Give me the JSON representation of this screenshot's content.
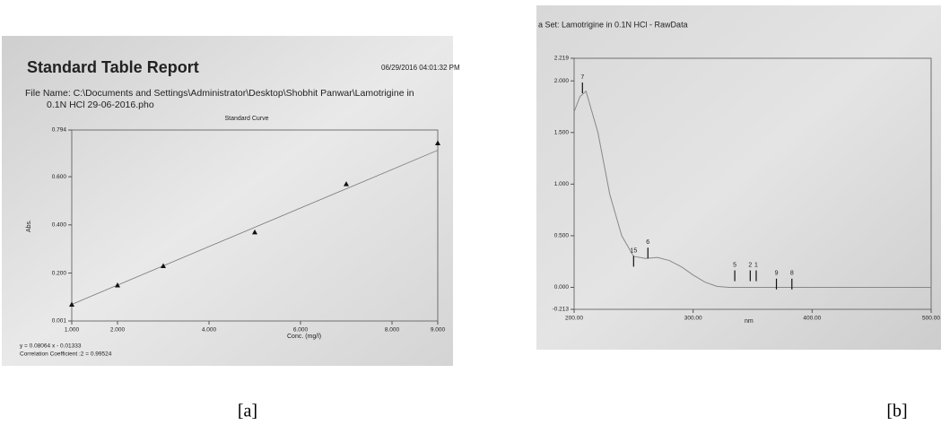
{
  "chart_data": [
    {
      "type": "scatter",
      "title": "Standard Table Report",
      "date": "06/29/2016  04:01:32 PM",
      "file_name": [
        "File Name: C:\\Documents and Settings\\Administrator\\Desktop\\Shobhit Panwar\\Lamotrigine in",
        "0.1N HCl 29-06-2016.pho"
      ],
      "subtitle": "Standard Curve",
      "x_label": "Conc. (mg/l)",
      "y_label": "Abs.",
      "equation": "y = 0.08064 x - 0.01333",
      "correlation": "Correlation Coefficient :2 = 0.99524",
      "x": [
        1,
        2,
        3,
        5,
        7,
        9
      ],
      "values": [
        0.07,
        0.15,
        0.23,
        0.37,
        0.57,
        0.74
      ],
      "color": "#111111",
      "fit_line": {
        "x": [
          1,
          9
        ],
        "values": [
          0.07,
          0.71
        ]
      },
      "xlim": [
        1,
        9
      ],
      "ylim": [
        0.001,
        0.794
      ],
      "xticks": [
        {
          "value": 1,
          "label": "1.000"
        },
        {
          "value": 2,
          "label": "2.000"
        },
        {
          "value": 4,
          "label": "4.000"
        },
        {
          "value": 6,
          "label": "6.000"
        },
        {
          "value": 8,
          "label": "8.000"
        },
        {
          "value": 9,
          "label": "9.000"
        }
      ],
      "yticks": [
        0.001,
        {
          "value": 0.2,
          "label": "0.200"
        },
        {
          "value": 0.4,
          "label": "0.400"
        },
        {
          "value": 0.6,
          "label": "0.600"
        },
        0.794
      ]
    },
    {
      "type": "line",
      "title": "a Set: Lamotrigine in 0.1N HCl - RawData",
      "x_label": "nm",
      "x": [
        200,
        205,
        210,
        220,
        230,
        240,
        250,
        260,
        270,
        280,
        290,
        300,
        310,
        320,
        330,
        350,
        400,
        500
      ],
      "values": [
        1.7,
        1.85,
        1.9,
        1.5,
        0.9,
        0.5,
        0.3,
        0.28,
        0.29,
        0.26,
        0.2,
        0.12,
        0.05,
        0.01,
        0.0,
        0.0,
        0.0,
        0.0
      ],
      "color": "#888888",
      "peak_labels": [
        {
          "label": "7",
          "x": 207,
          "y": 1.88
        },
        {
          "label": "15",
          "x": 250,
          "y": 0.2
        },
        {
          "label": "6",
          "x": 262,
          "y": 0.28
        },
        {
          "label": "5",
          "x": 335,
          "y": 0.06
        },
        {
          "label": "2",
          "x": 348,
          "y": 0.06
        },
        {
          "label": "1",
          "x": 353,
          "y": 0.06
        },
        {
          "label": "9",
          "x": 370,
          "y": -0.02
        },
        {
          "label": "8",
          "x": 383,
          "y": -0.02
        }
      ],
      "xlim": [
        200,
        500
      ],
      "ylim": [
        -0.213,
        2.219
      ],
      "xticks": [
        {
          "value": 200,
          "label": "200.00"
        },
        {
          "value": 300,
          "label": "300.00"
        },
        {
          "value": 400,
          "label": "400.00"
        },
        {
          "value": 500,
          "label": "500.00"
        }
      ],
      "yticks": [
        {
          "value": -0.213,
          "label": "-0.213"
        },
        {
          "value": 0,
          "label": "0.000"
        },
        {
          "value": 0.5,
          "label": "0.500"
        },
        {
          "value": 1,
          "label": "1.000"
        },
        {
          "value": 1.5,
          "label": "1.500"
        },
        {
          "value": 2,
          "label": "2.000"
        },
        2.219
      ]
    }
  ],
  "captions": [
    "[a]",
    "[b]"
  ]
}
